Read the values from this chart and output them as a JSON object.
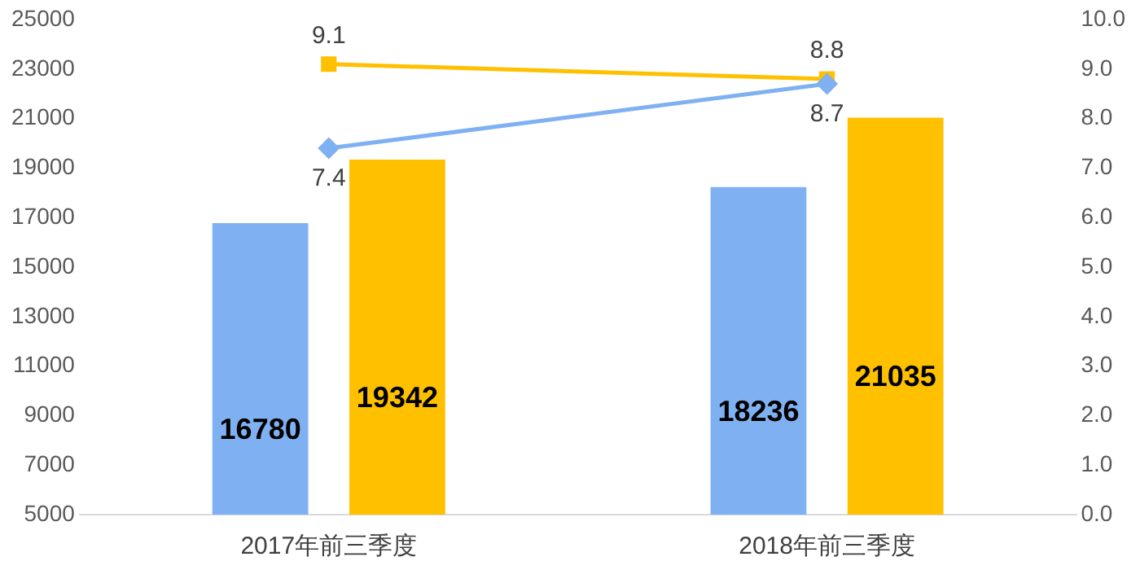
{
  "chart_data": {
    "type": "bar",
    "categories": [
      "2017年前三季度",
      "2018年前三季度"
    ],
    "series": [
      {
        "color": "#7fb1f2",
        "values": [
          16780,
          18236
        ]
      },
      {
        "color": "#ffc000",
        "values": [
          19342,
          21035
        ]
      },
      {
        "type": "line",
        "color": "#7fb1f2",
        "values": [
          7.4,
          8.7
        ],
        "axis": "y2",
        "marker": "diamond"
      },
      {
        "type": "line",
        "color": "#ffc000",
        "values": [
          9.1,
          8.8
        ],
        "axis": "y2",
        "marker": "square"
      }
    ],
    "ylim": [
      5000,
      25000
    ],
    "yticks": [
      5000,
      7000,
      9000,
      11000,
      13000,
      15000,
      17000,
      19000,
      21000,
      23000,
      25000
    ],
    "y2lim": [
      0,
      10
    ],
    "y2ticks": [
      {
        "value": 0,
        "label": "0.0"
      },
      {
        "value": 1,
        "label": "1.0"
      },
      {
        "value": 2,
        "label": "2.0"
      },
      {
        "value": 3,
        "label": "3.0"
      },
      {
        "value": 4,
        "label": "4.0"
      },
      {
        "value": 5,
        "label": "5.0"
      },
      {
        "value": 6,
        "label": "6.0"
      },
      {
        "value": 7,
        "label": "7.0"
      },
      {
        "value": 8,
        "label": "8.0"
      },
      {
        "value": 9,
        "label": "9.0"
      },
      {
        "value": 10,
        "label": "10.0"
      }
    ],
    "grid": false,
    "legend": false,
    "data_labels": true
  }
}
